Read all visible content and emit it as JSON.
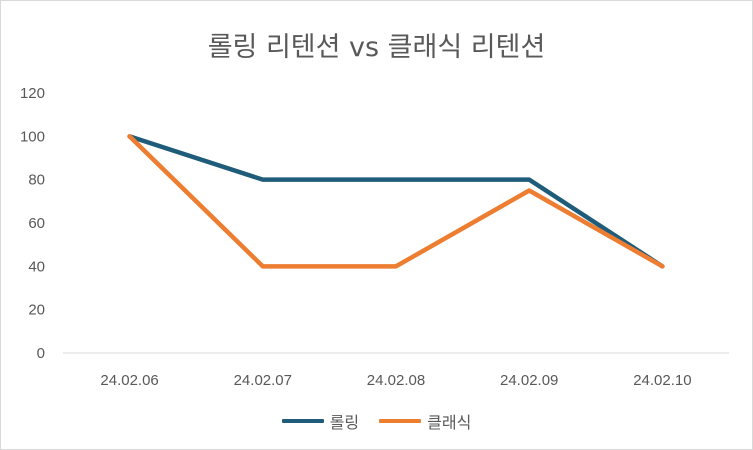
{
  "chart_data": {
    "type": "line",
    "title": "롤링 리텐션 vs 클래식 리텐션",
    "xlabel": "",
    "ylabel": "",
    "categories": [
      "24.02.06",
      "24.02.07",
      "24.02.08",
      "24.02.09",
      "24.02.10"
    ],
    "ylim": [
      0,
      120
    ],
    "yticks": [
      0,
      20,
      40,
      60,
      80,
      100,
      120
    ],
    "grid": false,
    "legend_position": "bottom",
    "series": [
      {
        "name": "롤링",
        "color": "#1f5c7a",
        "values": [
          100,
          80,
          80,
          80,
          40
        ]
      },
      {
        "name": "클래식",
        "color": "#ed7d31",
        "values": [
          100,
          40,
          40,
          75,
          40
        ]
      }
    ]
  }
}
